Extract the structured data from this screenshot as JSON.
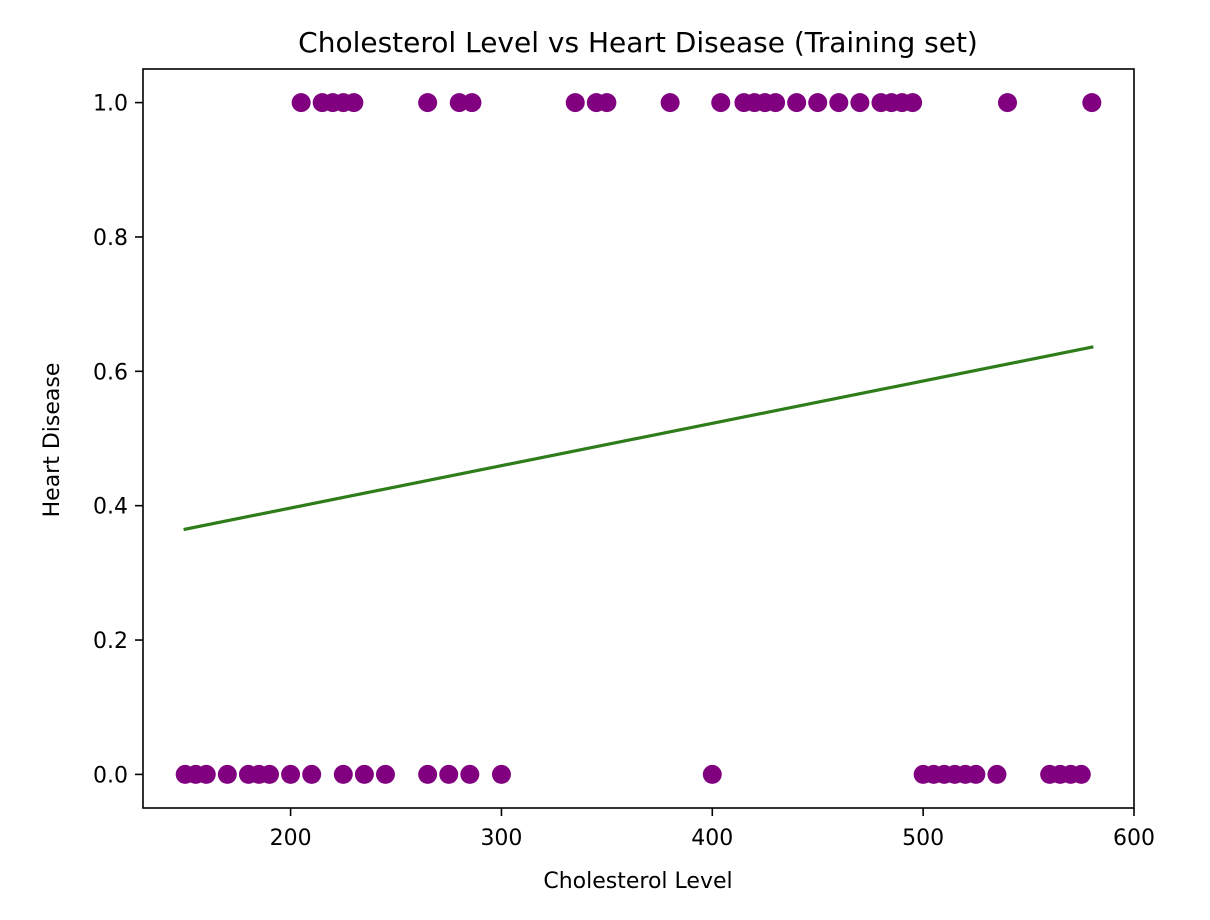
{
  "chart_data": {
    "type": "scatter",
    "title": "Cholesterol Level vs Heart Disease (Training set)",
    "xlabel": "Cholesterol Level",
    "ylabel": "Heart Disease",
    "xlim": [
      130,
      600
    ],
    "ylim": [
      -0.05,
      1.05
    ],
    "xticks": [
      200,
      300,
      400,
      500,
      600
    ],
    "xtick_labels": [
      "200",
      "300",
      "400",
      "500",
      "600"
    ],
    "yticks": [
      0.0,
      0.2,
      0.4,
      0.6,
      0.8,
      1.0
    ],
    "ytick_labels": [
      "0.0",
      "0.2",
      "0.4",
      "0.6",
      "0.8",
      "1.0"
    ],
    "grid": false,
    "legend": "none",
    "series": [
      {
        "kind": "scatter",
        "color": "#800080",
        "points": [
          {
            "x": 205,
            "y": 1
          },
          {
            "x": 215,
            "y": 1
          },
          {
            "x": 220,
            "y": 1
          },
          {
            "x": 225,
            "y": 1
          },
          {
            "x": 230,
            "y": 1
          },
          {
            "x": 265,
            "y": 1
          },
          {
            "x": 280,
            "y": 1
          },
          {
            "x": 286,
            "y": 1
          },
          {
            "x": 335,
            "y": 1
          },
          {
            "x": 345,
            "y": 1
          },
          {
            "x": 350,
            "y": 1
          },
          {
            "x": 380,
            "y": 1
          },
          {
            "x": 404,
            "y": 1
          },
          {
            "x": 415,
            "y": 1
          },
          {
            "x": 420,
            "y": 1
          },
          {
            "x": 425,
            "y": 1
          },
          {
            "x": 430,
            "y": 1
          },
          {
            "x": 440,
            "y": 1
          },
          {
            "x": 450,
            "y": 1
          },
          {
            "x": 460,
            "y": 1
          },
          {
            "x": 470,
            "y": 1
          },
          {
            "x": 480,
            "y": 1
          },
          {
            "x": 485,
            "y": 1
          },
          {
            "x": 490,
            "y": 1
          },
          {
            "x": 495,
            "y": 1
          },
          {
            "x": 540,
            "y": 1
          },
          {
            "x": 580,
            "y": 1
          },
          {
            "x": 150,
            "y": 0
          },
          {
            "x": 155,
            "y": 0
          },
          {
            "x": 160,
            "y": 0
          },
          {
            "x": 170,
            "y": 0
          },
          {
            "x": 180,
            "y": 0
          },
          {
            "x": 185,
            "y": 0
          },
          {
            "x": 190,
            "y": 0
          },
          {
            "x": 200,
            "y": 0
          },
          {
            "x": 210,
            "y": 0
          },
          {
            "x": 225,
            "y": 0
          },
          {
            "x": 235,
            "y": 0
          },
          {
            "x": 245,
            "y": 0
          },
          {
            "x": 265,
            "y": 0
          },
          {
            "x": 275,
            "y": 0
          },
          {
            "x": 285,
            "y": 0
          },
          {
            "x": 300,
            "y": 0
          },
          {
            "x": 400,
            "y": 0
          },
          {
            "x": 500,
            "y": 0
          },
          {
            "x": 505,
            "y": 0
          },
          {
            "x": 510,
            "y": 0
          },
          {
            "x": 515,
            "y": 0
          },
          {
            "x": 520,
            "y": 0
          },
          {
            "x": 525,
            "y": 0
          },
          {
            "x": 535,
            "y": 0
          },
          {
            "x": 560,
            "y": 0
          },
          {
            "x": 565,
            "y": 0
          },
          {
            "x": 570,
            "y": 0
          },
          {
            "x": 575,
            "y": 0
          }
        ]
      },
      {
        "kind": "line",
        "color": "#2e7d1a",
        "points": [
          {
            "x": 150,
            "y": 0.365
          },
          {
            "x": 580,
            "y": 0.636
          }
        ]
      }
    ]
  }
}
